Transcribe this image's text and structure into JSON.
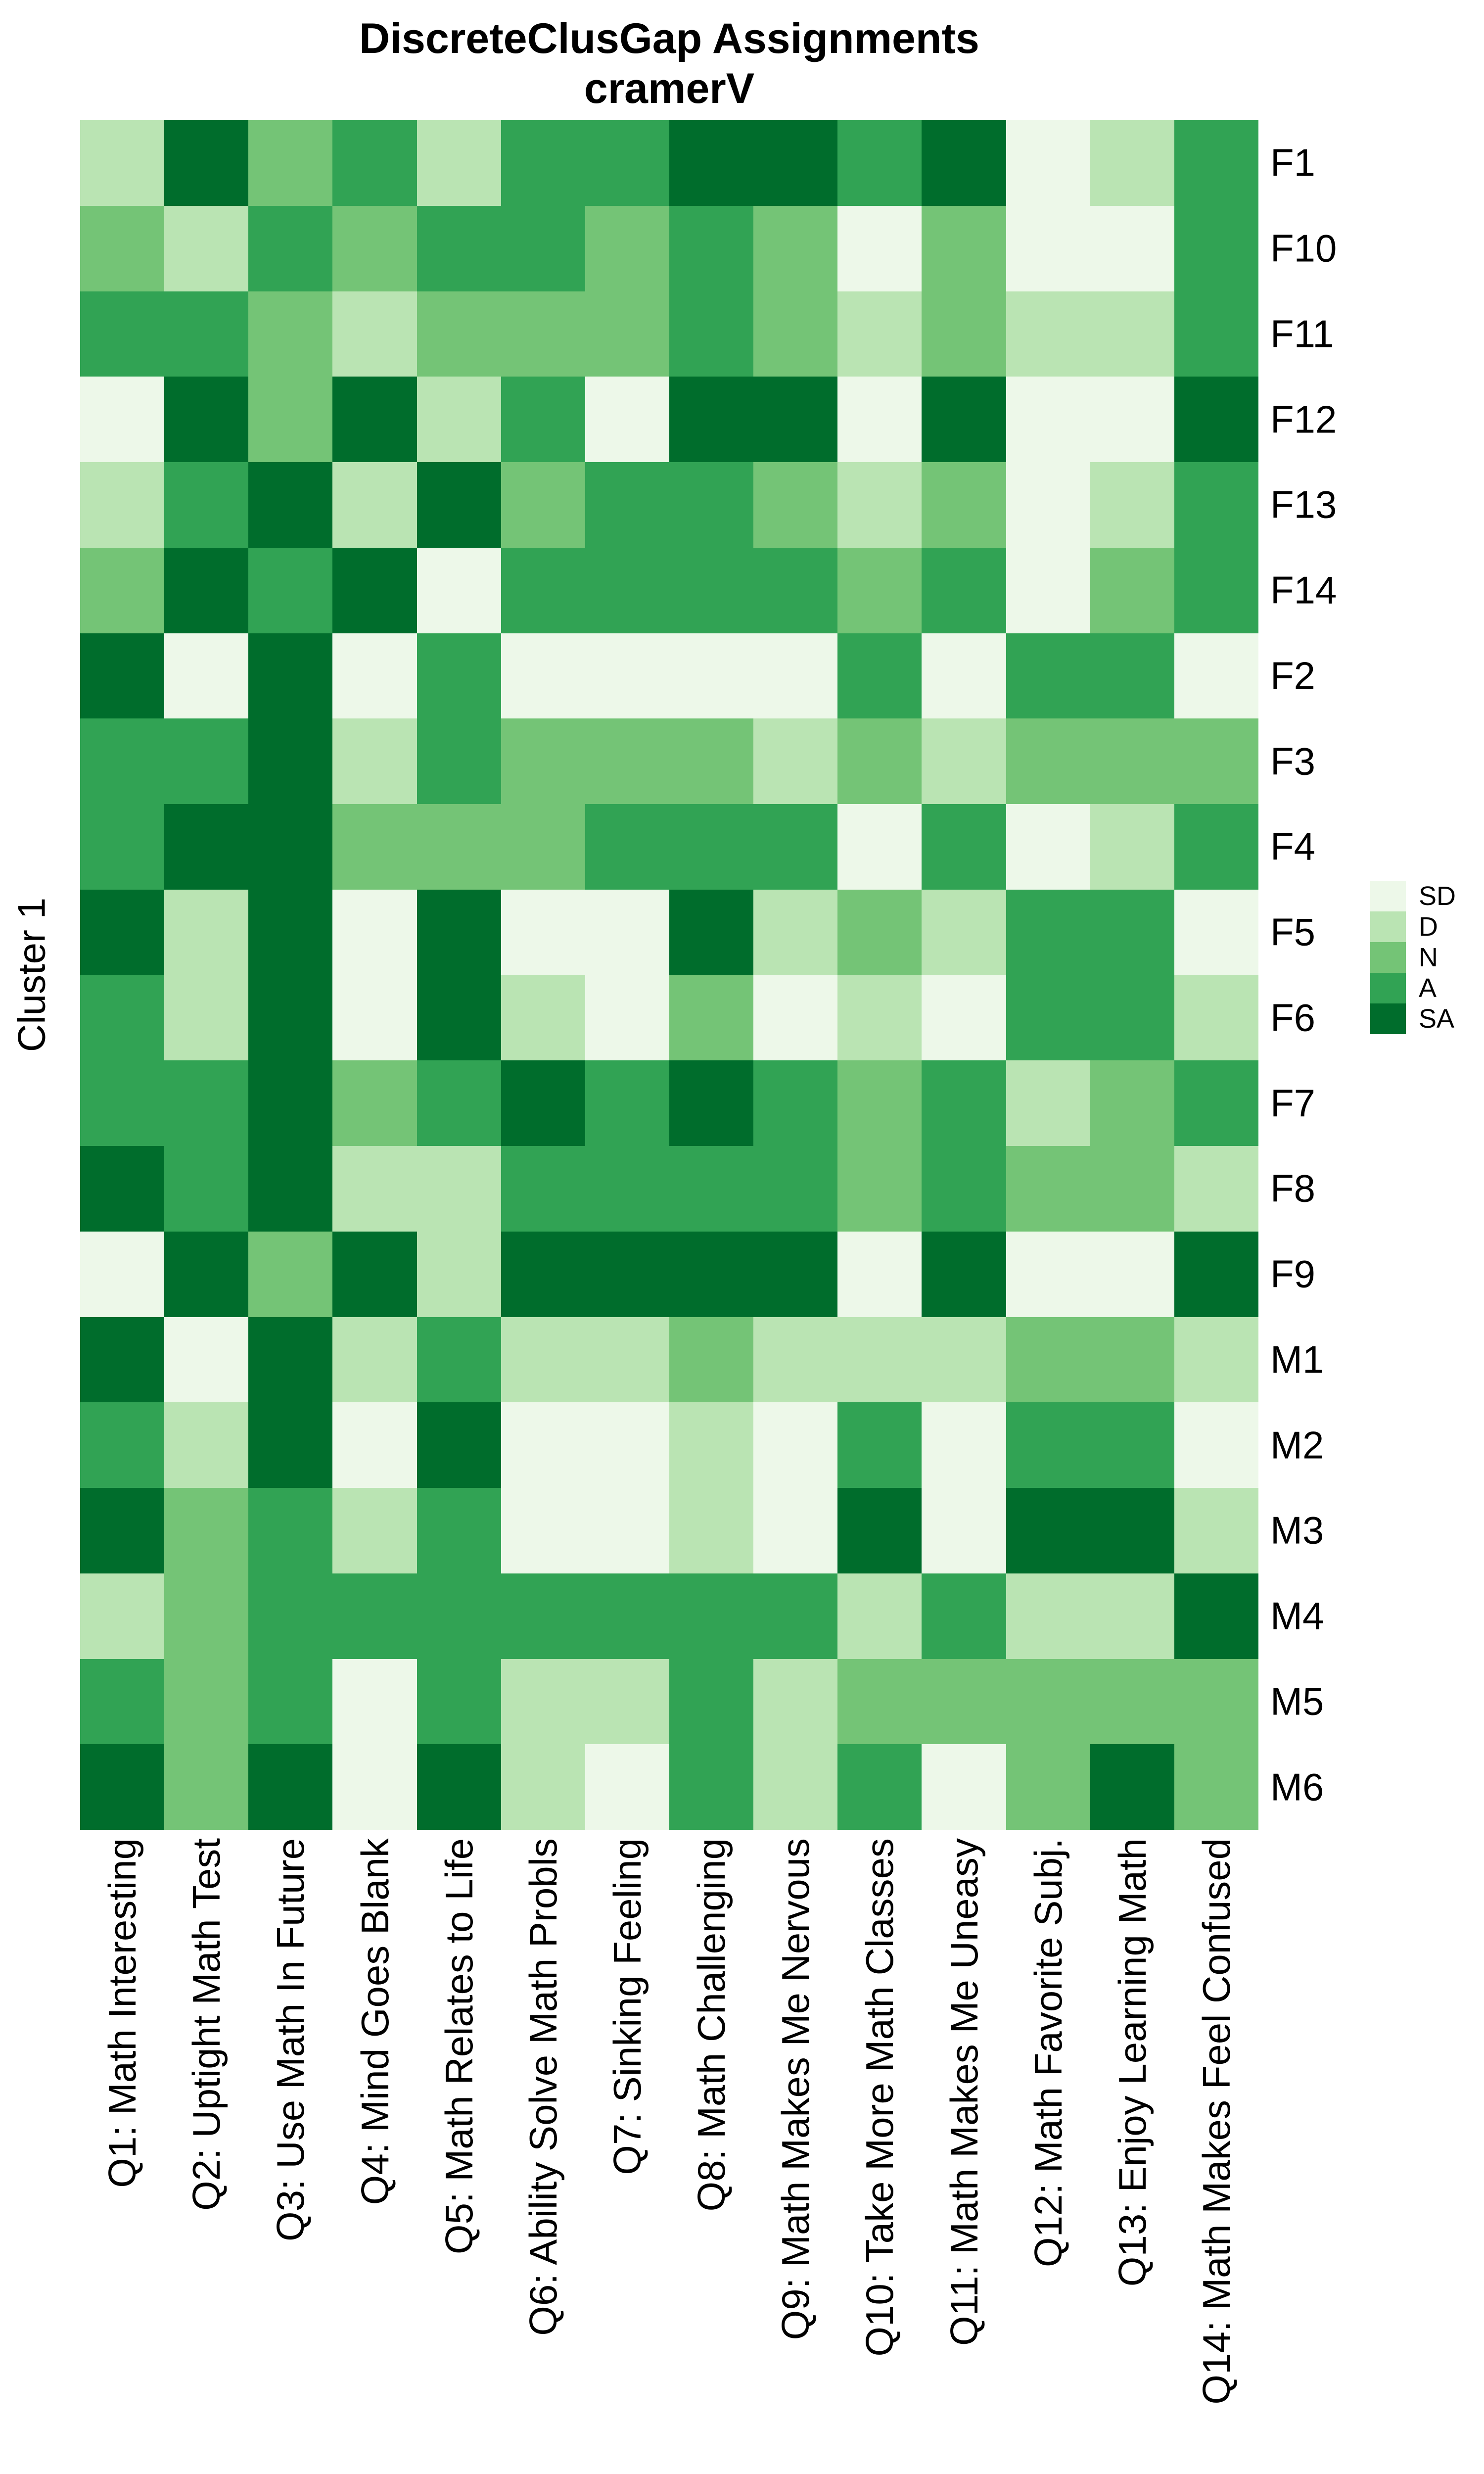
{
  "title": {
    "line1": "DiscreteClusGap Assignments",
    "line2": "cramerV"
  },
  "y_axis_label": "Cluster 1",
  "legend": {
    "entries": [
      {
        "label": "SD",
        "color": "#edf8e9"
      },
      {
        "label": "D",
        "color": "#bae4b3"
      },
      {
        "label": "N",
        "color": "#74c476"
      },
      {
        "label": "A",
        "color": "#31a354"
      },
      {
        "label": "SA",
        "color": "#006d2c"
      }
    ]
  },
  "chart_data": {
    "type": "heatmap",
    "title": "DiscreteClusGap Assignments",
    "subtitle": "cramerV",
    "ylabel": "Cluster 1",
    "legend_position": "right",
    "grid": false,
    "levels": [
      "SD",
      "D",
      "N",
      "A",
      "SA"
    ],
    "palette": {
      "SD": "#edf8e9",
      "D": "#bae4b3",
      "N": "#74c476",
      "A": "#31a354",
      "SA": "#006d2c"
    },
    "categories_x": [
      "Q1: Math Interesting",
      "Q2: Uptight Math Test",
      "Q3: Use Math In Future",
      "Q4: Mind Goes Blank",
      "Q5: Math Relates to Life",
      "Q6: Ability Solve Math Probls",
      "Q7: Sinking Feeling",
      "Q8: Math Challenging",
      "Q9: Math Makes Me Nervous",
      "Q10: Take More Math Classes",
      "Q11: Math Makes Me Uneasy",
      "Q12: Math Favorite Subj.",
      "Q13: Enjoy Learning Math",
      "Q14: Math Makes Feel Confused"
    ],
    "categories_y": [
      "F1",
      "F10",
      "F11",
      "F12",
      "F13",
      "F14",
      "F2",
      "F3",
      "F4",
      "F5",
      "F6",
      "F7",
      "F8",
      "F9",
      "M1",
      "M2",
      "M3",
      "M4",
      "M5",
      "M6"
    ],
    "values": [
      [
        "D",
        "SA",
        "N",
        "A",
        "D",
        "A",
        "A",
        "SA",
        "SA",
        "A",
        "SA",
        "SD",
        "D",
        "A"
      ],
      [
        "N",
        "D",
        "A",
        "N",
        "A",
        "A",
        "N",
        "A",
        "N",
        "SD",
        "N",
        "SD",
        "SD",
        "A"
      ],
      [
        "A",
        "A",
        "N",
        "D",
        "N",
        "N",
        "N",
        "A",
        "N",
        "D",
        "N",
        "D",
        "D",
        "A"
      ],
      [
        "SD",
        "SA",
        "N",
        "SA",
        "D",
        "A",
        "SD",
        "SA",
        "SA",
        "SD",
        "SA",
        "SD",
        "SD",
        "SA"
      ],
      [
        "D",
        "A",
        "SA",
        "D",
        "SA",
        "N",
        "A",
        "A",
        "N",
        "D",
        "N",
        "SD",
        "D",
        "A"
      ],
      [
        "N",
        "SA",
        "A",
        "SA",
        "SD",
        "A",
        "A",
        "A",
        "A",
        "N",
        "A",
        "SD",
        "N",
        "A"
      ],
      [
        "SA",
        "SD",
        "SA",
        "SD",
        "A",
        "SD",
        "SD",
        "SD",
        "SD",
        "A",
        "SD",
        "A",
        "A",
        "SD"
      ],
      [
        "A",
        "A",
        "SA",
        "D",
        "A",
        "N",
        "N",
        "N",
        "D",
        "N",
        "D",
        "N",
        "N",
        "N"
      ],
      [
        "A",
        "SA",
        "SA",
        "N",
        "N",
        "N",
        "A",
        "A",
        "A",
        "SD",
        "A",
        "SD",
        "D",
        "A"
      ],
      [
        "SA",
        "D",
        "SA",
        "SD",
        "SA",
        "SD",
        "SD",
        "SA",
        "D",
        "N",
        "D",
        "A",
        "A",
        "SD"
      ],
      [
        "A",
        "D",
        "SA",
        "SD",
        "SA",
        "D",
        "SD",
        "N",
        "SD",
        "D",
        "SD",
        "A",
        "A",
        "D"
      ],
      [
        "A",
        "A",
        "SA",
        "N",
        "A",
        "SA",
        "A",
        "SA",
        "A",
        "N",
        "A",
        "D",
        "N",
        "A"
      ],
      [
        "SA",
        "A",
        "SA",
        "D",
        "D",
        "A",
        "A",
        "A",
        "A",
        "N",
        "A",
        "N",
        "N",
        "D"
      ],
      [
        "SD",
        "SA",
        "N",
        "SA",
        "D",
        "SA",
        "SA",
        "SA",
        "SA",
        "SD",
        "SA",
        "SD",
        "SD",
        "SA"
      ],
      [
        "SA",
        "SD",
        "SA",
        "D",
        "A",
        "D",
        "D",
        "N",
        "D",
        "D",
        "D",
        "N",
        "N",
        "D"
      ],
      [
        "A",
        "D",
        "SA",
        "SD",
        "SA",
        "SD",
        "SD",
        "D",
        "SD",
        "A",
        "SD",
        "A",
        "A",
        "SD"
      ],
      [
        "SA",
        "N",
        "A",
        "D",
        "A",
        "SD",
        "SD",
        "D",
        "SD",
        "SA",
        "SD",
        "SA",
        "SA",
        "D"
      ],
      [
        "D",
        "N",
        "A",
        "A",
        "A",
        "A",
        "A",
        "A",
        "A",
        "D",
        "A",
        "D",
        "D",
        "SA"
      ],
      [
        "A",
        "N",
        "A",
        "SD",
        "A",
        "D",
        "D",
        "A",
        "D",
        "N",
        "N",
        "N",
        "N",
        "N"
      ],
      [
        "SA",
        "N",
        "SA",
        "SD",
        "SA",
        "D",
        "SD",
        "A",
        "D",
        "A",
        "SD",
        "N",
        "SA",
        "N"
      ]
    ]
  }
}
